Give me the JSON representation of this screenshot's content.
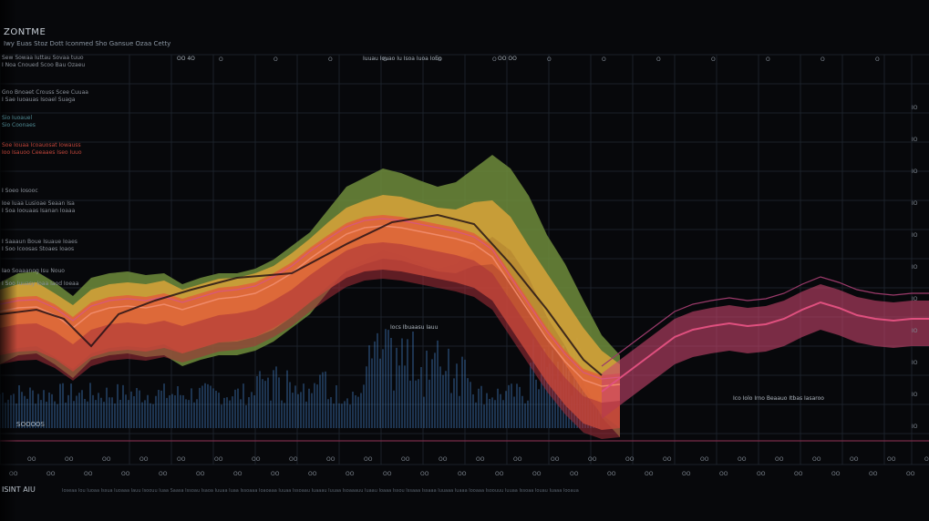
{
  "chart_data": {
    "type": "area",
    "title": "ZONTME",
    "subtitle": "Iwy Euas Stoz Dott Iconmed Sho Gansue Ozaa Cetty",
    "x": [
      0,
      20,
      40,
      60,
      80,
      100,
      120,
      140,
      160,
      180,
      200,
      220,
      240,
      260,
      280,
      300,
      320,
      340,
      360,
      380,
      400,
      420,
      440,
      460,
      480,
      500,
      520,
      540,
      560,
      580,
      600,
      620,
      640,
      660,
      680,
      700,
      720,
      740,
      760,
      780,
      800,
      820,
      840,
      860,
      880,
      900,
      920,
      940,
      960,
      980,
      1000,
      1019
    ],
    "series": [
      {
        "name": "",
        "color": "#6e8c3c",
        "values": [
          310,
          300,
          298,
          310,
          325,
          305,
          300,
          298,
          302,
          300,
          312,
          305,
          300,
          300,
          295,
          285,
          270,
          255,
          230,
          205,
          195,
          185,
          190,
          198,
          205,
          200,
          185,
          170,
          185,
          215,
          258,
          290,
          330,
          368,
          390,
          0,
          0,
          0,
          0,
          0,
          0,
          0,
          0,
          0,
          0,
          0,
          0,
          0,
          0,
          0,
          0,
          0
        ]
      },
      {
        "name": "",
        "color": "#d9a33a",
        "values": [
          318,
          312,
          310,
          322,
          335,
          318,
          312,
          310,
          312,
          308,
          318,
          312,
          306,
          305,
          300,
          292,
          278,
          262,
          244,
          228,
          220,
          214,
          216,
          222,
          228,
          230,
          222,
          220,
          238,
          270,
          300,
          330,
          360,
          385,
          400,
          0,
          0,
          0,
          0,
          0,
          0,
          0,
          0,
          0,
          0,
          0,
          0,
          0,
          0,
          0,
          0,
          0
        ]
      },
      {
        "name": "",
        "color": "#e0603a",
        "values": [
          330,
          326,
          325,
          334,
          348,
          332,
          326,
          324,
          326,
          322,
          328,
          322,
          316,
          314,
          310,
          300,
          288,
          272,
          258,
          245,
          238,
          236,
          238,
          242,
          246,
          250,
          256,
          270,
          300,
          330,
          360,
          385,
          405,
          412,
          410,
          0,
          0,
          0,
          0,
          0,
          0,
          0,
          0,
          0,
          0,
          0,
          0,
          0,
          0,
          0,
          0,
          0
        ]
      },
      {
        "name": "",
        "color": "#c8456d",
        "values": [
          0,
          0,
          0,
          0,
          0,
          0,
          0,
          0,
          0,
          0,
          0,
          0,
          0,
          0,
          0,
          0,
          0,
          0,
          0,
          0,
          0,
          0,
          0,
          0,
          0,
          0,
          0,
          0,
          0,
          0,
          0,
          0,
          0,
          410,
          395,
          380,
          365,
          350,
          342,
          338,
          335,
          338,
          336,
          330,
          320,
          312,
          318,
          326,
          330,
          332,
          330,
          330
        ]
      }
    ],
    "grid": true,
    "xlabel": "",
    "ylabel": ""
  },
  "title": "ZONTME",
  "subtitle": "Iwy Euas Stoz Dott Iconmed Sho Gansue Ozaa Cetty",
  "side_labels": [
    {
      "text": "Sew Sowaa Iuttau Sovaa tuuo",
      "value": "",
      "style": "normal"
    },
    {
      "text": "I Noa Cnoued Scoo Bau Ozaeu",
      "value": "",
      "style": "normal"
    },
    {
      "text": "Gno Bnoaet Crouss Scee Cuuaa",
      "value": "",
      "style": "normal"
    },
    {
      "text": "I Sae Iuoauas Isoael Suaga",
      "value": "",
      "style": "normal"
    },
    {
      "text": "Sio Iuoauel",
      "value": "",
      "style": "teal"
    },
    {
      "text": "Sio Coonaes",
      "value": "",
      "style": "teal"
    },
    {
      "text": "Soe Iouaa Icoauosat Iowauss",
      "value": "",
      "style": "hl"
    },
    {
      "text": "Ioo Isauoo Ceeaaes Iseo Iuuo",
      "value": "",
      "style": "hl"
    },
    {
      "text": "I Soeo Iosooc",
      "value": "",
      "style": "normal"
    },
    {
      "text": "Ioe Iuaa Lusioae Seaan Isa",
      "value": "",
      "style": "normal"
    },
    {
      "text": "I Soa Ioouaas Isanan Ioaaa",
      "value": "",
      "style": "normal"
    },
    {
      "text": "I Saaaun Boue Isuaue Ioaes",
      "value": "",
      "style": "normal"
    },
    {
      "text": "I Soo Icoosas Stoaes Ioaos",
      "value": "",
      "style": "normal"
    },
    {
      "text": "Iao Soaaanog Isu Nouo",
      "value": "",
      "style": "normal"
    },
    {
      "text": "I Soo Iuuasy Ioaa Iaod Ioeaa",
      "value": "",
      "style": "normal"
    }
  ],
  "bottom_left_label": "SOOOOS",
  "footer_label": "ISINT AIU",
  "footer_text": "Ioseaa Iou Iuoaa Issua Iuoaaa Iauu Isoouu Iuaa Saasa Issoau Isaoa Iuuaa Iuaa Issoaaa Ioaoaaa Iuuaa Issoaau Iuaaau Iuuaa Isoaaauu Iuaau Ioaaa Issou Issaaa Issaaa Iuuaaa Iuaaa Iooaaa Isoouuu Iuuaa Issoaa Iouau Iuaaa Iooaua",
  "annotations": [
    {
      "text": "Iocs Ibuaasu Iauu",
      "where": "center"
    },
    {
      "text": "Ico Iolo Irno Beaauo Itbas Iasaroo",
      "where": "right"
    }
  ],
  "top_notes": [
    {
      "text": "Iuuau Iouao Iu Isoa Iuoa IoEo"
    },
    {
      "text": "OO 4O"
    },
    {
      "text": "OO OO"
    }
  ],
  "x_ticks_top": [
    "O",
    "O",
    "O",
    "O",
    "O",
    "O",
    "O",
    "O",
    "O",
    "O",
    "O",
    "O",
    "O"
  ],
  "y_ticks_right": [
    "IO",
    "IO",
    "IO",
    "IO",
    "IO",
    "IO",
    "IO",
    "IO",
    "IO",
    "IO",
    "IO"
  ],
  "x_ticks_bottom": [
    "OO",
    "OO",
    "OO",
    "OO",
    "OO",
    "OO",
    "OO",
    "OO",
    "OO",
    "OO",
    "OO",
    "OO",
    "OO",
    "OO",
    "OO",
    "OO",
    "OO",
    "OO",
    "OO",
    "OO",
    "OO",
    "OO",
    "OO",
    "OO",
    "OO"
  ]
}
